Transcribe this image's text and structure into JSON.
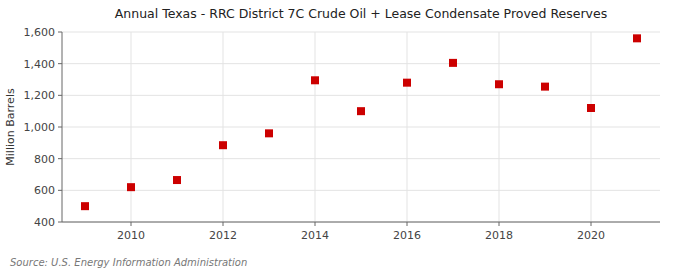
{
  "chart_data": {
    "type": "scatter",
    "title": "Annual Texas - RRC District 7C Crude Oil + Lease Condensate Proved Reserves",
    "ylabel": "Million Barrels",
    "annotations": [
      "Source: U.S. Energy Information Administration"
    ],
    "x": [
      2009,
      2010,
      2011,
      2012,
      2013,
      2014,
      2015,
      2016,
      2017,
      2018,
      2019,
      2020,
      2021
    ],
    "values": [
      500,
      620,
      665,
      885,
      960,
      1295,
      1100,
      1280,
      1405,
      1270,
      1255,
      1120,
      1560
    ],
    "color": "#CC0000",
    "marker": "square",
    "grid": true,
    "xlim": [
      2008.5,
      2021.5
    ],
    "xticks": [
      2010,
      2012,
      2014,
      2016,
      2018,
      2020
    ],
    "ylim": [
      400,
      1600
    ],
    "yticks": [
      400,
      600,
      800,
      {
        "value": 1000,
        "label": "1,000"
      },
      {
        "value": 1200,
        "label": "1,200"
      },
      {
        "value": 1400,
        "label": "1,400"
      },
      {
        "value": 1600,
        "label": "1,600"
      }
    ]
  }
}
